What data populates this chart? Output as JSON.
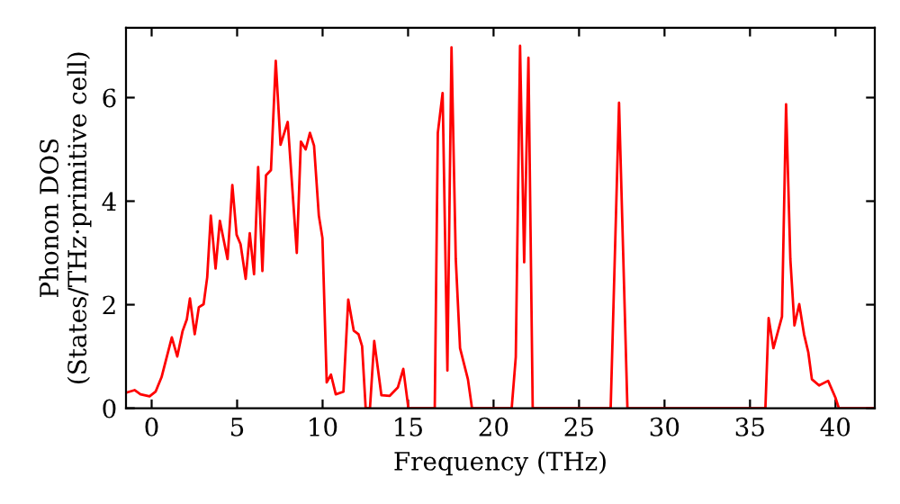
{
  "chart_data": {
    "type": "line",
    "xlabel": "Frequency (THz)",
    "ylabel": "Phonon DOS\n(States/THz·primitive cell)",
    "xlim": [
      -1.5,
      42.3
    ],
    "ylim": [
      0,
      7.35
    ],
    "xticks": [
      0,
      5,
      10,
      15,
      20,
      25,
      30,
      35,
      40
    ],
    "yticks": [
      0,
      2,
      4,
      6
    ],
    "grid": false,
    "legend": false,
    "marker": "none",
    "line_style": "solid",
    "series": [
      {
        "color": "#ff0000",
        "x": [
          -1.5,
          -1.0,
          -0.65,
          -0.12,
          0.23,
          0.58,
          1.18,
          1.5,
          1.81,
          2.06,
          2.24,
          2.52,
          2.76,
          3.04,
          3.25,
          3.46,
          3.74,
          3.99,
          4.44,
          4.72,
          4.97,
          5.2,
          5.5,
          5.74,
          5.99,
          6.23,
          6.48,
          6.69,
          6.98,
          7.26,
          7.54,
          7.96,
          8.49,
          8.73,
          9.01,
          9.26,
          9.5,
          9.78,
          9.99,
          10.24,
          10.49,
          10.77,
          11.22,
          11.5,
          11.82,
          12.1,
          12.31,
          12.52,
          12.77,
          13.02,
          13.44,
          13.93,
          14.4,
          14.72,
          15.02,
          16.56,
          16.74,
          17.02,
          17.3,
          17.54,
          17.79,
          18.04,
          18.5,
          18.74,
          21.06,
          21.3,
          21.55,
          21.79,
          22.04,
          22.29,
          26.85,
          27.34,
          27.83,
          35.9,
          36.09,
          36.37,
          36.87,
          37.11,
          37.36,
          37.6,
          37.88,
          38.16,
          38.41,
          38.62,
          39.04,
          39.57,
          39.99,
          40.2,
          42.24
        ],
        "values": [
          0.3,
          0.35,
          0.27,
          0.23,
          0.32,
          0.6,
          1.37,
          1.0,
          1.49,
          1.72,
          2.12,
          1.43,
          1.95,
          2.01,
          2.53,
          3.72,
          2.7,
          3.62,
          2.88,
          4.31,
          3.35,
          3.17,
          2.5,
          3.38,
          2.59,
          4.66,
          2.65,
          4.5,
          4.6,
          6.71,
          5.09,
          5.53,
          3.0,
          5.15,
          5.0,
          5.32,
          5.07,
          3.72,
          3.29,
          0.5,
          0.65,
          0.27,
          0.32,
          2.1,
          1.5,
          1.43,
          1.2,
          0,
          0,
          1.3,
          0.25,
          0.24,
          0.4,
          0.76,
          0,
          0,
          5.32,
          6.09,
          0.73,
          6.97,
          2.88,
          1.16,
          0.56,
          0,
          0,
          0.99,
          7.0,
          2.82,
          6.77,
          0,
          0,
          5.9,
          0,
          0,
          1.74,
          1.16,
          1.77,
          5.87,
          2.88,
          1.6,
          2.01,
          1.43,
          1.08,
          0.56,
          0.44,
          0.53,
          0.21,
          0,
          0
        ]
      }
    ]
  }
}
